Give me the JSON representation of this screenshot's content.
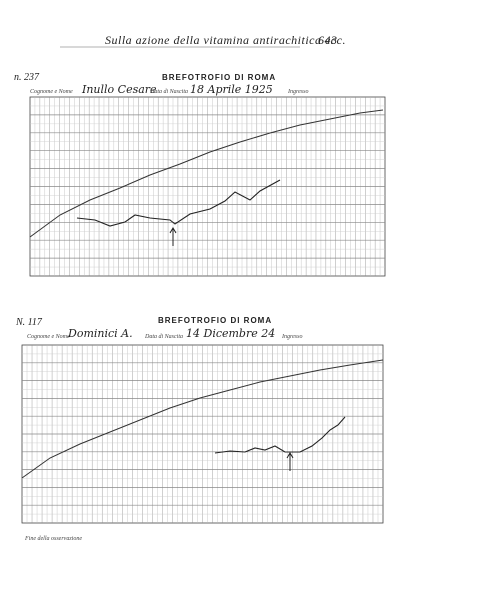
{
  "header": {
    "title": "Sulla azione della vitamina antirachitica ecc.",
    "page": "643"
  },
  "charts": [
    {
      "number": "n. 237",
      "title": "BREFOTROFIO DI ROMA",
      "name_label": "Cognome e Nome",
      "name": "Inullo Cesare",
      "birth_label": "Data di Nascita",
      "birth": "18 Aprile 1925",
      "entry_label": "Ingresso"
    },
    {
      "number": "N. 117",
      "title": "BREFOTROFIO DI ROMA",
      "name_label": "Cognome e Nome",
      "name": "Dominici A.",
      "birth_label": "Data di Nascita",
      "birth": "14 Dicembre 24",
      "entry_label": "Ingresso"
    }
  ],
  "footer": "Fine della osservazione"
}
